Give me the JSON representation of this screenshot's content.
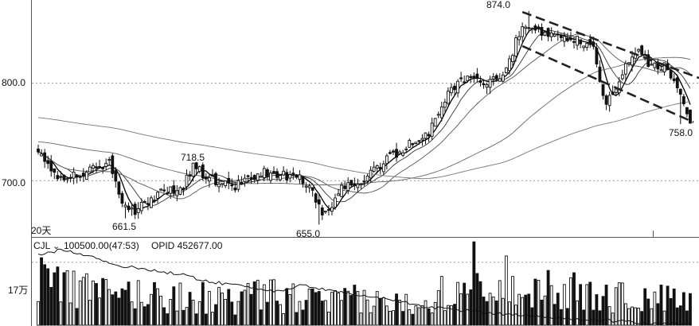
{
  "chart_data": [
    {
      "type": "candlestick",
      "y_ticks": [
        "800.0",
        "700.0"
      ],
      "y_tick_values": [
        800,
        700
      ],
      "ylim": [
        644,
        882
      ],
      "period_label": "20天",
      "annotations": [
        {
          "text": "874.0",
          "value": 874.0,
          "bar": 152
        },
        {
          "text": "718.5",
          "value": 718.5,
          "bar": 48
        },
        {
          "text": "661.5",
          "value": 661.5,
          "bar": 27
        },
        {
          "text": "655.0",
          "value": 655.0,
          "bar": 87
        },
        {
          "text": "758.0",
          "value": 758.0,
          "bar": 199
        }
      ],
      "trend_channel": {
        "upper": [
          {
            "bar": 150,
            "value": 873
          },
          {
            "bar": 205,
            "value": 805
          }
        ],
        "lower": [
          {
            "bar": 150,
            "value": 838
          },
          {
            "bar": 203,
            "value": 760
          }
        ]
      },
      "moving_averages": [
        {
          "name": "MA5",
          "color": "#000000"
        },
        {
          "name": "MA10",
          "color": "#333333"
        },
        {
          "name": "MA20",
          "color": "#555555"
        },
        {
          "name": "MA60",
          "color": "#666666"
        },
        {
          "name": "MA120",
          "color": "#777777"
        }
      ],
      "close_anchors": [
        [
          0,
          733
        ],
        [
          4,
          708
        ],
        [
          8,
          705
        ],
        [
          14,
          707
        ],
        [
          18,
          712
        ],
        [
          22,
          720
        ],
        [
          25,
          688
        ],
        [
          28,
          667
        ],
        [
          31,
          672
        ],
        [
          36,
          684
        ],
        [
          41,
          690
        ],
        [
          45,
          696
        ],
        [
          48,
          715
        ],
        [
          51,
          708
        ],
        [
          55,
          700
        ],
        [
          60,
          692
        ],
        [
          65,
          702
        ],
        [
          70,
          708
        ],
        [
          75,
          706
        ],
        [
          80,
          705
        ],
        [
          84,
          697
        ],
        [
          88,
          668
        ],
        [
          91,
          675
        ],
        [
          94,
          692
        ],
        [
          97,
          698
        ],
        [
          101,
          702
        ],
        [
          105,
          712
        ],
        [
          109,
          724
        ],
        [
          113,
          732
        ],
        [
          117,
          742
        ],
        [
          121,
          749
        ],
        [
          124,
          768
        ],
        [
          127,
          788
        ],
        [
          130,
          801
        ],
        [
          134,
          806
        ],
        [
          138,
          803
        ],
        [
          142,
          802
        ],
        [
          146,
          822
        ],
        [
          149,
          852
        ],
        [
          152,
          858
        ],
        [
          156,
          850
        ],
        [
          160,
          846
        ],
        [
          164,
          843
        ],
        [
          168,
          845
        ],
        [
          172,
          837
        ],
        [
          174,
          802
        ],
        [
          176,
          780
        ],
        [
          179,
          795
        ],
        [
          182,
          817
        ],
        [
          185,
          833
        ],
        [
          188,
          824
        ],
        [
          191,
          818
        ],
        [
          194,
          816
        ],
        [
          197,
          800
        ],
        [
          199,
          786
        ],
        [
          201,
          771
        ],
        [
          202,
          759
        ]
      ]
    },
    {
      "type": "bar",
      "name": "volume",
      "header": {
        "symbol": "CJL",
        "value_text": "100500.00(47:53)",
        "opid_text": "OPID 452677.00"
      },
      "y_tick": "17万",
      "ylim": [
        0,
        230000
      ],
      "tick_value": 170000,
      "volume_anchors": [
        [
          0,
          140000
        ],
        [
          10,
          115000
        ],
        [
          20,
          90000
        ],
        [
          30,
          95000
        ],
        [
          40,
          85000
        ],
        [
          50,
          82000
        ],
        [
          60,
          70000
        ],
        [
          70,
          90000
        ],
        [
          80,
          80000
        ],
        [
          90,
          65000
        ],
        [
          100,
          78000
        ],
        [
          110,
          60000
        ],
        [
          120,
          85000
        ],
        [
          128,
          110000
        ],
        [
          135,
          160000
        ],
        [
          140,
          150000
        ],
        [
          150,
          120000
        ],
        [
          160,
          110000
        ],
        [
          170,
          90000
        ],
        [
          180,
          85000
        ],
        [
          190,
          80000
        ],
        [
          200,
          70000
        ],
        [
          205,
          60000
        ]
      ],
      "open_interest_anchors": [
        [
          0,
          190000
        ],
        [
          8,
          205000
        ],
        [
          15,
          190000
        ],
        [
          25,
          160000
        ],
        [
          35,
          150000
        ],
        [
          45,
          135000
        ],
        [
          55,
          115000
        ],
        [
          65,
          105000
        ],
        [
          75,
          90000
        ],
        [
          82,
          108000
        ],
        [
          90,
          95000
        ],
        [
          100,
          80000
        ],
        [
          110,
          68000
        ],
        [
          120,
          50000
        ],
        [
          130,
          42000
        ],
        [
          140,
          33000
        ],
        [
          150,
          28000
        ],
        [
          160,
          20000
        ],
        [
          170,
          15000
        ],
        [
          180,
          10000
        ],
        [
          190,
          6000
        ],
        [
          200,
          4000
        ],
        [
          205,
          3000
        ]
      ]
    }
  ]
}
